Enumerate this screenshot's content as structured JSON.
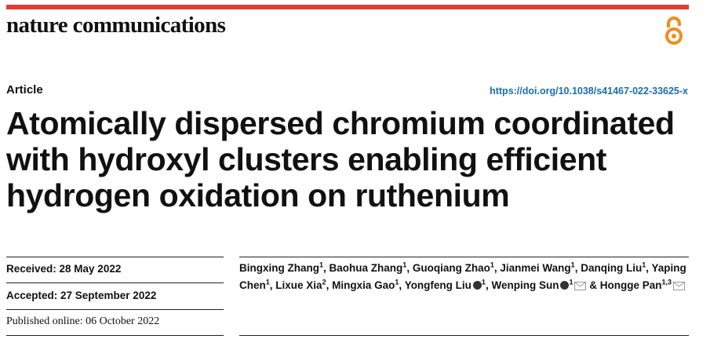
{
  "header": {
    "journal": "nature communications",
    "article_type": "Article",
    "doi": "https://doi.org/10.1038/s41467-022-33625-x"
  },
  "title": [
    "Atomically dispersed chromium coordinated",
    "with hydroxyl clusters enabling efficient",
    "hydrogen oxidation on ruthenium"
  ],
  "dates": [
    "Received: 28 May 2022",
    "Accepted: 27 September 2022",
    "Published online: 06 October 2022"
  ],
  "separator": ",",
  "conjunction": "&",
  "authors": [
    {
      "name": "Bingxing Zhang",
      "affiliation": "1",
      "orcid": false,
      "email": false
    },
    {
      "name": "Baohua Zhang",
      "affiliation": "1",
      "orcid": false,
      "email": false
    },
    {
      "name": "Guoqiang Zhao",
      "affiliation": "1",
      "orcid": false,
      "email": false
    },
    {
      "name": "Jianmei Wang",
      "affiliation": "1",
      "orcid": false,
      "email": false
    },
    {
      "name": "Danqing Liu",
      "affiliation": "1",
      "orcid": false,
      "email": false
    },
    {
      "name": "Yaping Chen",
      "affiliation": "1",
      "orcid": false,
      "email": false
    },
    {
      "name": "Lixue Xia",
      "affiliation": "2",
      "orcid": false,
      "email": false
    },
    {
      "name": "Mingxia Gao",
      "affiliation": "1",
      "orcid": false,
      "email": false
    },
    {
      "name": "Yongfeng Liu",
      "affiliation": "1",
      "orcid": true,
      "email": false
    },
    {
      "name": "Wenping Sun",
      "affiliation": "1",
      "orcid": true,
      "email": true
    },
    {
      "name": "Hongge Pan",
      "affiliation": "1,3",
      "orcid": false,
      "email": true
    }
  ]
}
